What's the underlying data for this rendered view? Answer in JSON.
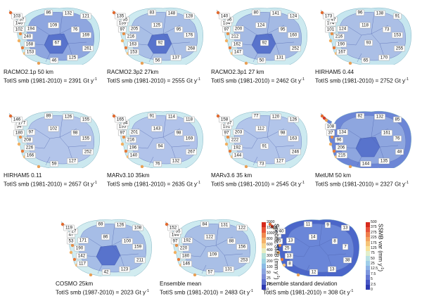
{
  "panels": [
    {
      "id": "racmo21",
      "title": "RACMO2.1p 50 km",
      "smb_text": "TotIS smb (1981-2010) = 2391 Gt y",
      "unit_sup": "-1",
      "interior": "#8ea6df",
      "dark": [
        false,
        false,
        false,
        false,
        true,
        false,
        false,
        false
      ],
      "coast": "#c8e8ef",
      "basins": [
        "86",
        "132",
        "121",
        "76",
        "169",
        "261",
        "125",
        "46",
        "153",
        "168",
        "240",
        "194",
        "102",
        "146",
        "37",
        "103",
        "109",
        "67"
      ]
    },
    {
      "id": "racmo23p2",
      "title": "RACMO2.3p2 27km",
      "smb_text": "TotIS smb (1981-2010) = 2555 Gt y",
      "unit_sup": "-1",
      "interior": "#a9bfe6",
      "dark": [
        false,
        false,
        false,
        false,
        true,
        false,
        false,
        false
      ],
      "coast": "#cdeaf0",
      "basins": [
        "83",
        "148",
        "128",
        "95",
        "176",
        "268",
        "137",
        "56",
        "153",
        "163",
        "216",
        "205",
        "97",
        "139",
        "35",
        "135",
        "125",
        "92"
      ]
    },
    {
      "id": "racmo23p1",
      "title": "RACMO2.3p1 27 km",
      "smb_text": "TotIS smb (1981-2010) = 2462 Gt y",
      "unit_sup": "-1",
      "interior": "#a4bae4",
      "dark": [
        false,
        false,
        false,
        false,
        true,
        false,
        false,
        false
      ],
      "coast": "#cdeaf0",
      "basins": [
        "80",
        "141",
        "124",
        "95",
        "160",
        "252",
        "131",
        "50",
        "147",
        "162",
        "212",
        "200",
        "97",
        "134",
        "36",
        "140",
        "124",
        "92"
      ]
    },
    {
      "id": "hirham044",
      "title": "HIRHAM5 0.44",
      "smb_text": "TotIS smb (1981-2010) = 2752 Gt y",
      "unit_sup": "-1",
      "interior": "#abbfe6",
      "dark": [
        false,
        false,
        false,
        false,
        false,
        false,
        false,
        false
      ],
      "coast": "#c6e6ef",
      "basins": [
        "96",
        "138",
        "91",
        "73",
        "153",
        "255",
        "170",
        "65",
        "167",
        "190",
        "216",
        "124",
        "101",
        "174",
        "47",
        "173",
        "118",
        "93"
      ]
    },
    {
      "id": "hirham011",
      "title": "HIRHAM5 0.11",
      "smb_text": "TotIS smb (1981-2010) = 2657 Gt y",
      "unit_sup": "-1",
      "interior": "#b3c5ea",
      "dark": [
        false,
        false,
        false,
        false,
        false,
        false,
        false,
        false
      ],
      "coast": "#cbe8ef",
      "basins": [
        "89",
        "126",
        "155",
        "98",
        "155",
        "252",
        "127",
        "59",
        "166",
        "226",
        "208",
        "97",
        "180",
        "34",
        "177",
        "146",
        "102",
        ""
      ]
    },
    {
      "id": "marv310",
      "title": "MARv3.10 35km",
      "smb_text": "TotIS smb (1981-2010) = 2635 Gt y",
      "unit_sup": "-1",
      "interior": "#b1c3ea",
      "dark": [
        false,
        false,
        false,
        false,
        false,
        false,
        false,
        false
      ],
      "coast": "#cdeaf0",
      "basins": [
        "91",
        "114",
        "118",
        "98",
        "169",
        "267",
        "132",
        "76",
        "140",
        "196",
        "216",
        "201",
        "97",
        "135",
        "34",
        "165",
        "143",
        "94"
      ]
    },
    {
      "id": "marv36",
      "title": "MARv3.6 35 km",
      "smb_text": "TotIS smb (1981-2010) = 2545 Gt y",
      "unit_sup": "-1",
      "interior": "#b2c5ea",
      "dark": [
        false,
        false,
        false,
        false,
        false,
        false,
        false,
        false
      ],
      "coast": "#cdeaf0",
      "basins": [
        "77",
        "120",
        "126",
        "98",
        "163",
        "246",
        "127",
        "73",
        "144",
        "192",
        "222",
        "203",
        "97",
        "131",
        "37",
        "158",
        "112",
        "91"
      ]
    },
    {
      "id": "metum",
      "title": "MetUM 50 km",
      "smb_text": "TotIS smb (1981-2010) = 2327 Gt y",
      "unit_sup": "-1",
      "interior": "#8ea6df",
      "dark": [
        false,
        false,
        false,
        false,
        true,
        false,
        false,
        false
      ],
      "coast": "#6c86d6",
      "basins": [
        "82",
        "132",
        "85",
        "161",
        "76",
        "48",
        "135",
        "144",
        "215",
        "206",
        "96",
        "134",
        "37",
        "108",
        "",
        "",
        "",
        ""
      ]
    },
    {
      "id": "cosmo",
      "title": "COSMO 25km",
      "smb_text": "TotIS smb (1987-2010) = 2023 Gt y",
      "unit_sup": "-1",
      "interior": "#a6bde6",
      "dark": [
        false,
        false,
        false,
        false,
        true,
        false,
        false,
        false
      ],
      "coast": "#d2ecf0",
      "basins": [
        "69",
        "126",
        "108",
        "100",
        "159",
        "211",
        "123",
        "42",
        "117",
        "142",
        "190",
        "171",
        "53",
        "47",
        "27",
        "119",
        "86",
        ""
      ]
    },
    {
      "id": "ensmean",
      "title": "Ensemble mean",
      "smb_text": "TotIS smb (1981-2010) = 2483 Gt y",
      "unit_sup": "-1",
      "interior": "#a9bfe6",
      "dark": [
        false,
        false,
        false,
        false,
        false,
        false,
        false,
        false
      ],
      "coast": "#cdeaf0",
      "basins": [
        "84",
        "131",
        "122",
        "88",
        "156",
        "253",
        "131",
        "57",
        "146",
        "180",
        "220",
        "192",
        "97",
        "144",
        "35",
        "152",
        "122",
        "109"
      ]
    },
    {
      "id": "enssd",
      "title": "Ensemble standard deviation",
      "smb_text": "TotIS smb (1981-2010) = 308 Gt y",
      "unit_sup": "-1",
      "interior": "#6a86d8",
      "dark": [
        false,
        false,
        false,
        false,
        false,
        false,
        false,
        false
      ],
      "coast": "#4b66c9",
      "basins": [
        "11",
        "9",
        "13",
        "8",
        "7",
        "38",
        "13",
        "12",
        "8",
        "13",
        "25",
        "13",
        "20",
        "7",
        "40",
        "8",
        "14",
        ""
      ]
    }
  ],
  "colorbars": [
    {
      "id": "smb",
      "title": "Specific SMB (mm y",
      "title_sup": "-1",
      "title_end": ")",
      "ticks": [
        "2000",
        "1500",
        "1000",
        "800",
        "600",
        "400",
        "300",
        "200",
        "100",
        "50",
        "25",
        "10",
        "0"
      ],
      "colors": [
        "#d62a1d",
        "#e8573a",
        "#f08a50",
        "#f4b26a",
        "#f7d58c",
        "#e7eec3",
        "#b6e2d9",
        "#9ed4e3",
        "#8bbbe6",
        "#8aa4df",
        "#7d8ed8",
        "#5c6fce",
        "#2e3ab0"
      ]
    },
    {
      "id": "ssmb",
      "title": "SSMB var (mm y",
      "title_sup": "-1",
      "title_end": ")",
      "ticks": [
        "500",
        "375",
        "275",
        "225",
        "175",
        "125",
        "75",
        "50",
        "25",
        "12.5",
        "7.5",
        "5",
        "2.5",
        "0"
      ],
      "colors": [
        "#d62a1d",
        "#e6523a",
        "#ef7e4c",
        "#f3a25f",
        "#f6c477",
        "#f7e29a",
        "#e1efcc",
        "#b9e1e3",
        "#9fcde8",
        "#8eb3e6",
        "#7d97de",
        "#6478d3",
        "#4857c5",
        "#2e3ab0"
      ]
    }
  ]
}
